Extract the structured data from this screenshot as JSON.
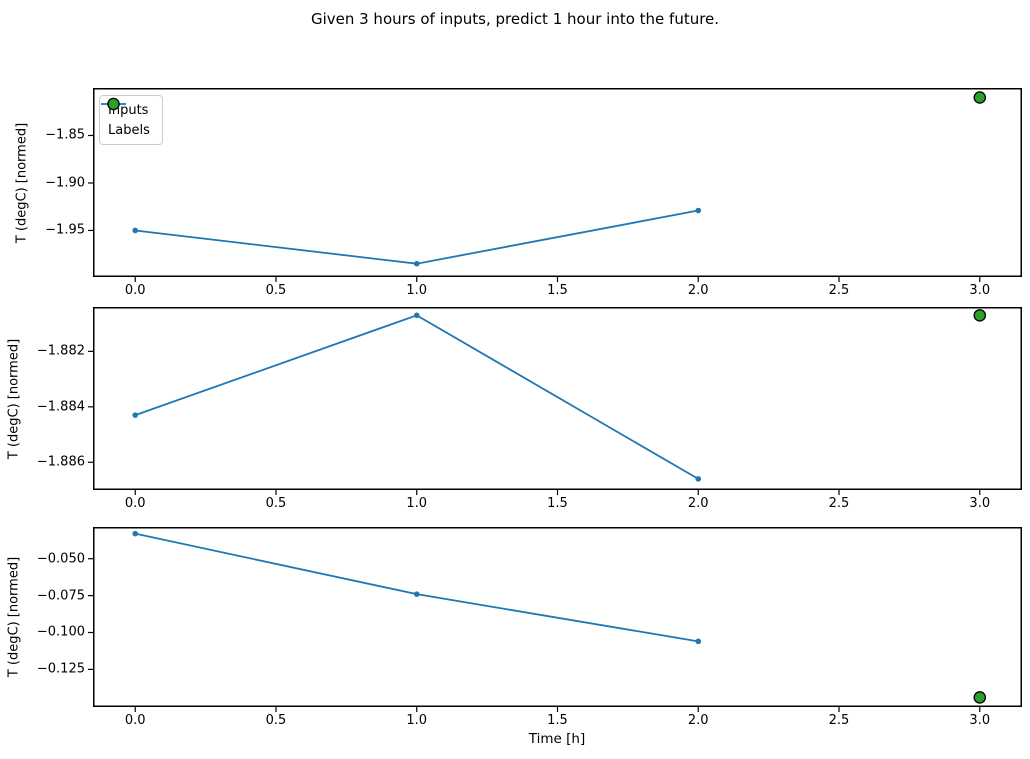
{
  "title": "Given 3 hours of inputs, predict 1 hour into the future.",
  "xlabel": "Time [h]",
  "legend": {
    "inputs": "Inputs",
    "labels": "Labels",
    "position": "upper left"
  },
  "colors": {
    "inputs_line": "#1f77b4",
    "labels_fill": "#2ca02c",
    "labels_edge": "#000000",
    "spine": "#000000",
    "legend_border": "#cccccc"
  },
  "chart_data": [
    {
      "type": "line",
      "ylabel": "T (degC) [normed]",
      "series": [
        {
          "name": "Inputs",
          "x": [
            0.0,
            1.0,
            2.0
          ],
          "y": [
            -1.95,
            -1.985,
            -1.929
          ]
        },
        {
          "name": "Labels",
          "x": [
            3.0
          ],
          "y": [
            -1.81
          ]
        }
      ],
      "xlim": [
        -0.15,
        3.15
      ],
      "ylim": [
        -1.999,
        -1.8
      ],
      "xticks": [
        0.0,
        0.5,
        1.0,
        1.5,
        2.0,
        2.5,
        3.0
      ],
      "xtick_labels": [
        "0.0",
        "0.5",
        "1.0",
        "1.5",
        "2.0",
        "2.5",
        "3.0"
      ],
      "yticks": [
        -1.85,
        -1.9,
        -1.95
      ],
      "ytick_labels": [
        "−1.85",
        "−1.90",
        "−1.95"
      ],
      "grid": false,
      "legend_shown": true
    },
    {
      "type": "line",
      "ylabel": "T (degC) [normed]",
      "series": [
        {
          "name": "Inputs",
          "x": [
            0.0,
            1.0,
            2.0
          ],
          "y": [
            -1.8843,
            -1.8807,
            -1.8866
          ]
        },
        {
          "name": "Labels",
          "x": [
            3.0
          ],
          "y": [
            -1.8807
          ]
        }
      ],
      "xlim": [
        -0.15,
        3.15
      ],
      "ylim": [
        -1.887,
        -1.8804
      ],
      "xticks": [
        0.0,
        0.5,
        1.0,
        1.5,
        2.0,
        2.5,
        3.0
      ],
      "xtick_labels": [
        "0.0",
        "0.5",
        "1.0",
        "1.5",
        "2.0",
        "2.5",
        "3.0"
      ],
      "yticks": [
        -1.882,
        -1.884,
        -1.886
      ],
      "ytick_labels": [
        "−1.882",
        "−1.884",
        "−1.886"
      ],
      "grid": false,
      "legend_shown": false
    },
    {
      "type": "line",
      "ylabel": "T (degC) [normed]",
      "series": [
        {
          "name": "Inputs",
          "x": [
            0.0,
            1.0,
            2.0
          ],
          "y": [
            -0.033,
            -0.074,
            -0.106
          ]
        },
        {
          "name": "Labels",
          "x": [
            3.0
          ],
          "y": [
            -0.144
          ]
        }
      ],
      "xlim": [
        -0.15,
        3.15
      ],
      "ylim": [
        -0.1505,
        -0.0285
      ],
      "xticks": [
        0.0,
        0.5,
        1.0,
        1.5,
        2.0,
        2.5,
        3.0
      ],
      "xtick_labels": [
        "0.0",
        "0.5",
        "1.0",
        "1.5",
        "2.0",
        "2.5",
        "3.0"
      ],
      "yticks": [
        -0.05,
        -0.075,
        -0.1,
        -0.125
      ],
      "ytick_labels": [
        "−0.050",
        "−0.075",
        "−0.100",
        "−0.125"
      ],
      "grid": false,
      "legend_shown": false
    }
  ]
}
